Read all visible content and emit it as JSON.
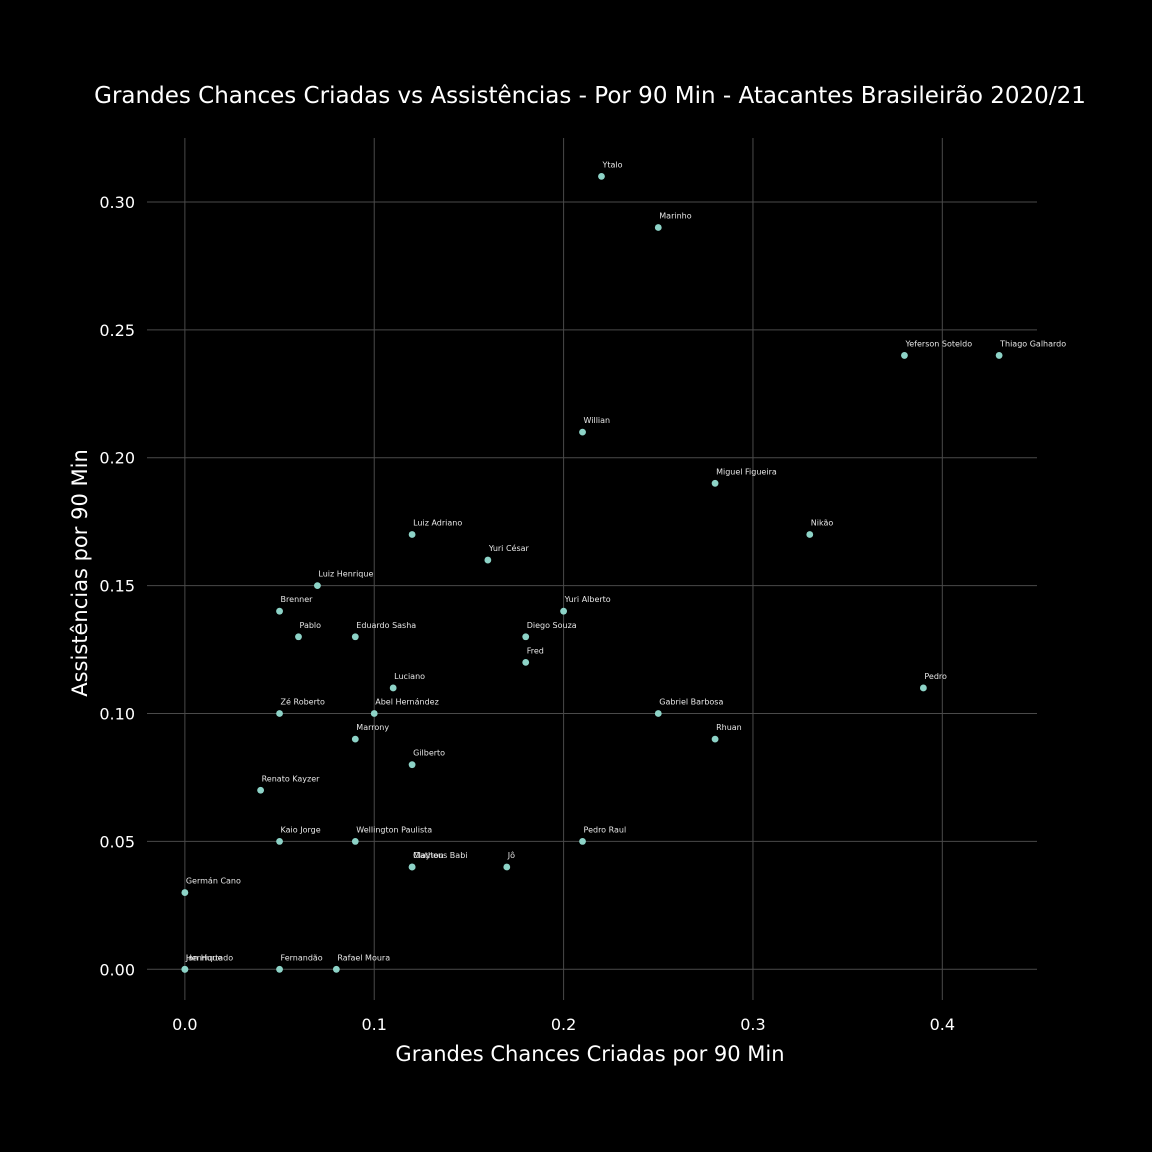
{
  "chart_data": {
    "type": "scatter",
    "title": "Grandes Chances Criadas vs Assistências - Por 90 Min - Atacantes Brasileirão 2020/21",
    "xlabel": "Grandes Chances Criadas por 90 Min",
    "ylabel": "Assistências por 90 Min",
    "xlim": [
      -0.02,
      0.45
    ],
    "ylim": [
      -0.012,
      0.325
    ],
    "xticks": [
      0.0,
      0.1,
      0.2,
      0.3,
      0.4
    ],
    "xtick_labels": [
      "0.0",
      "0.1",
      "0.2",
      "0.3",
      "0.4"
    ],
    "yticks": [
      0.0,
      0.05,
      0.1,
      0.15,
      0.2,
      0.25,
      0.3
    ],
    "ytick_labels": [
      "0.00",
      "0.05",
      "0.10",
      "0.15",
      "0.20",
      "0.25",
      "0.30"
    ],
    "grid": true,
    "point_color": "#8dd3c7",
    "background": "#000000",
    "points": [
      {
        "label": "Ytalo",
        "x": 0.22,
        "y": 0.31
      },
      {
        "label": "Marinho",
        "x": 0.25,
        "y": 0.29
      },
      {
        "label": "Yeferson Soteldo",
        "x": 0.38,
        "y": 0.24
      },
      {
        "label": "Thiago Galhardo",
        "x": 0.43,
        "y": 0.24
      },
      {
        "label": "Willian",
        "x": 0.21,
        "y": 0.21
      },
      {
        "label": "Miguel Figueira",
        "x": 0.28,
        "y": 0.19
      },
      {
        "label": "Luiz Adriano",
        "x": 0.12,
        "y": 0.17
      },
      {
        "label": "Nikão",
        "x": 0.33,
        "y": 0.17
      },
      {
        "label": "Yuri César",
        "x": 0.16,
        "y": 0.16
      },
      {
        "label": "Luiz Henrique",
        "x": 0.07,
        "y": 0.15
      },
      {
        "label": "Brenner",
        "x": 0.05,
        "y": 0.14
      },
      {
        "label": "Yuri Alberto",
        "x": 0.2,
        "y": 0.14
      },
      {
        "label": "Pablo",
        "x": 0.06,
        "y": 0.13
      },
      {
        "label": "Eduardo Sasha",
        "x": 0.09,
        "y": 0.13
      },
      {
        "label": "Diego Souza",
        "x": 0.18,
        "y": 0.13
      },
      {
        "label": "Fred",
        "x": 0.18,
        "y": 0.12
      },
      {
        "label": "Luciano",
        "x": 0.11,
        "y": 0.11
      },
      {
        "label": "Pedro",
        "x": 0.39,
        "y": 0.11
      },
      {
        "label": "Zé Roberto",
        "x": 0.05,
        "y": 0.1
      },
      {
        "label": "Abel Hernández",
        "x": 0.1,
        "y": 0.1
      },
      {
        "label": "Gabriel Barbosa",
        "x": 0.25,
        "y": 0.1
      },
      {
        "label": "Marrony",
        "x": 0.09,
        "y": 0.09
      },
      {
        "label": "Rhuan",
        "x": 0.28,
        "y": 0.09
      },
      {
        "label": "Gilberto",
        "x": 0.12,
        "y": 0.08
      },
      {
        "label": "Renato Kayzer",
        "x": 0.04,
        "y": 0.07
      },
      {
        "label": "Kaio Jorge",
        "x": 0.05,
        "y": 0.05
      },
      {
        "label": "Wellington Paulista",
        "x": 0.09,
        "y": 0.05
      },
      {
        "label": "Pedro Raul",
        "x": 0.21,
        "y": 0.05
      },
      {
        "label": "Matheus Babi",
        "x": 0.12,
        "y": 0.04
      },
      {
        "label": "Clayton",
        "x": 0.12,
        "y": 0.04
      },
      {
        "label": "Jô",
        "x": 0.17,
        "y": 0.04
      },
      {
        "label": "Germán Cano",
        "x": 0.0,
        "y": 0.03
      },
      {
        "label": "Jan Hurtado",
        "x": 0.0,
        "y": 0.0
      },
      {
        "label": "Henrique",
        "x": 0.0,
        "y": 0.0
      },
      {
        "label": "Fernandão",
        "x": 0.05,
        "y": 0.0
      },
      {
        "label": "Rafael Moura",
        "x": 0.08,
        "y": 0.0
      }
    ]
  }
}
